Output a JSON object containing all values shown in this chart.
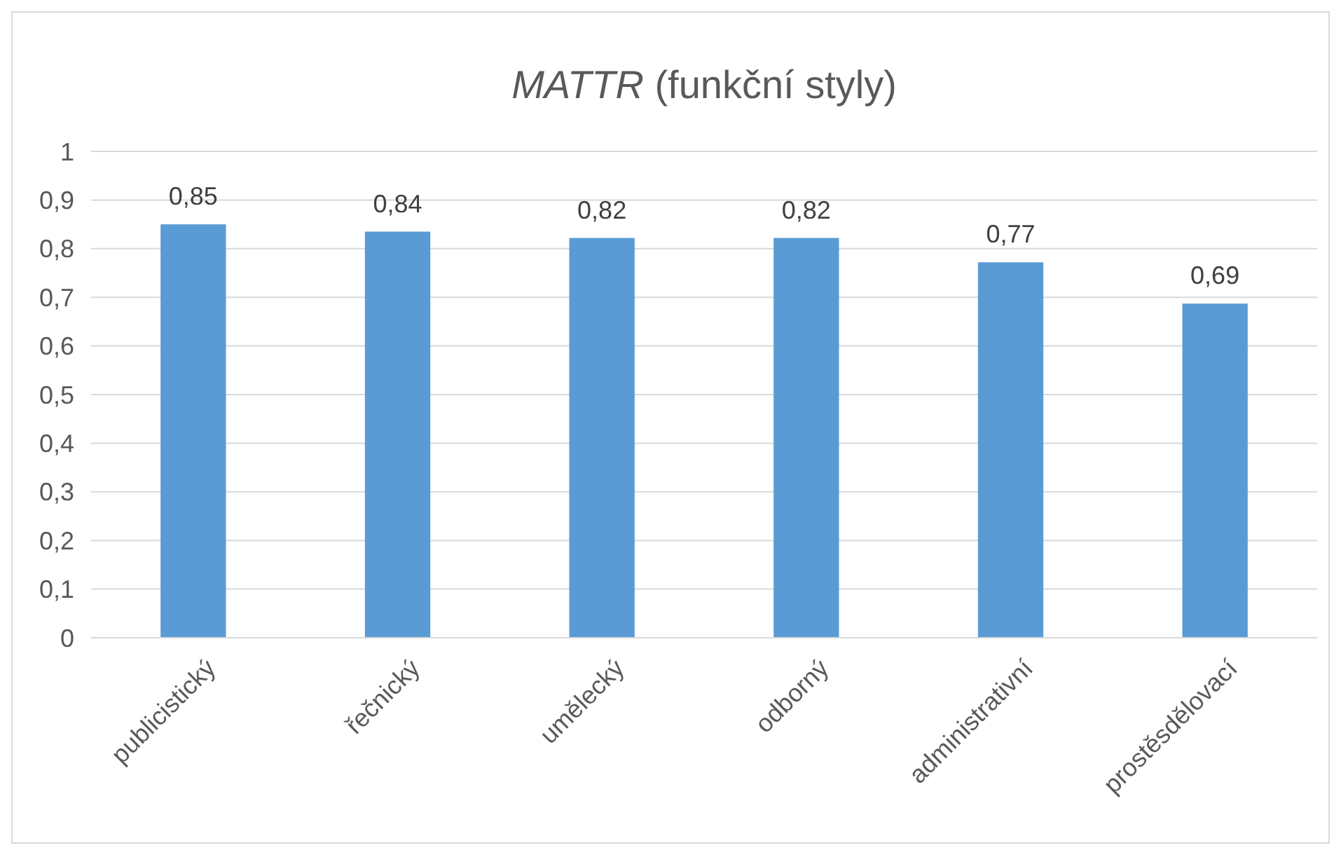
{
  "chart_data": {
    "type": "bar",
    "title": "MATTR (funkční styly)",
    "categories": [
      "publicistický",
      "řečnický",
      "umělecký",
      "odborný",
      "administrativní",
      "prostěsdělovací"
    ],
    "values": [
      0.85,
      0.835,
      0.822,
      0.822,
      0.772,
      0.687
    ],
    "value_labels": [
      "0,85",
      "0,84",
      "0,82",
      "0,82",
      "0,77",
      "0,69"
    ],
    "color": "#5b9bd5",
    "ylim": [
      0,
      1
    ],
    "yticks": [
      0,
      {
        "value": 0.1,
        "label": "0,1"
      },
      {
        "value": 0.2,
        "label": "0,2"
      },
      {
        "value": 0.3,
        "label": "0,3"
      },
      {
        "value": 0.4,
        "label": "0,4"
      },
      {
        "value": 0.5,
        "label": "0,5"
      },
      {
        "value": 0.6,
        "label": "0,6"
      },
      {
        "value": 0.7,
        "label": "0,7"
      },
      {
        "value": 0.8,
        "label": "0,8"
      },
      {
        "value": 0.9,
        "label": "0,9"
      },
      1
    ],
    "grid": "y"
  }
}
